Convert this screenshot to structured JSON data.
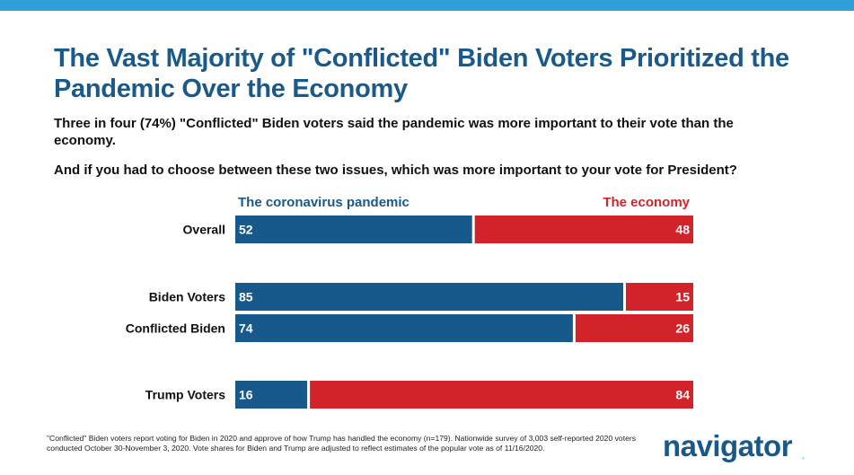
{
  "header": {
    "title": "The Vast Majority of \"Conflicted\" Biden Voters Prioritized the Pandemic Over the Economy",
    "subtitle": "Three in four (74%) \"Conflicted\" Biden voters said the pandemic was more important to their vote than the economy.",
    "question": "And if you had to choose between these two issues, which was more important to your vote for President?"
  },
  "colors": {
    "accent_bar": "#2e9fd8",
    "title": "#1a5a8a",
    "pandemic": "#17598a",
    "economy": "#d2232a"
  },
  "chart_data": {
    "type": "bar",
    "orientation": "horizontal-stacked-100",
    "categories": [
      "Overall",
      "Biden Voters",
      "Conflicted Biden",
      "Trump Voters"
    ],
    "series": [
      {
        "name": "The coronavirus pandemic",
        "values": [
          52,
          85,
          74,
          16
        ]
      },
      {
        "name": "The economy",
        "values": [
          48,
          15,
          26,
          84
        ]
      }
    ],
    "xlim": [
      0,
      100
    ],
    "legend_placement": "top",
    "grid": false
  },
  "footnote": "\"Conflicted\" Biden voters report voting for Biden in 2020 and approve of how Trump has handled the economy (n=179). Nationwide survey of 3,003 self-reported 2020 voters conducted October 30-November 3, 2020. Vote shares for Biden and Trump are adjusted to reflect estimates of the popular vote as of 11/16/2020.",
  "logo": {
    "text": "navigator",
    "dot": "."
  }
}
